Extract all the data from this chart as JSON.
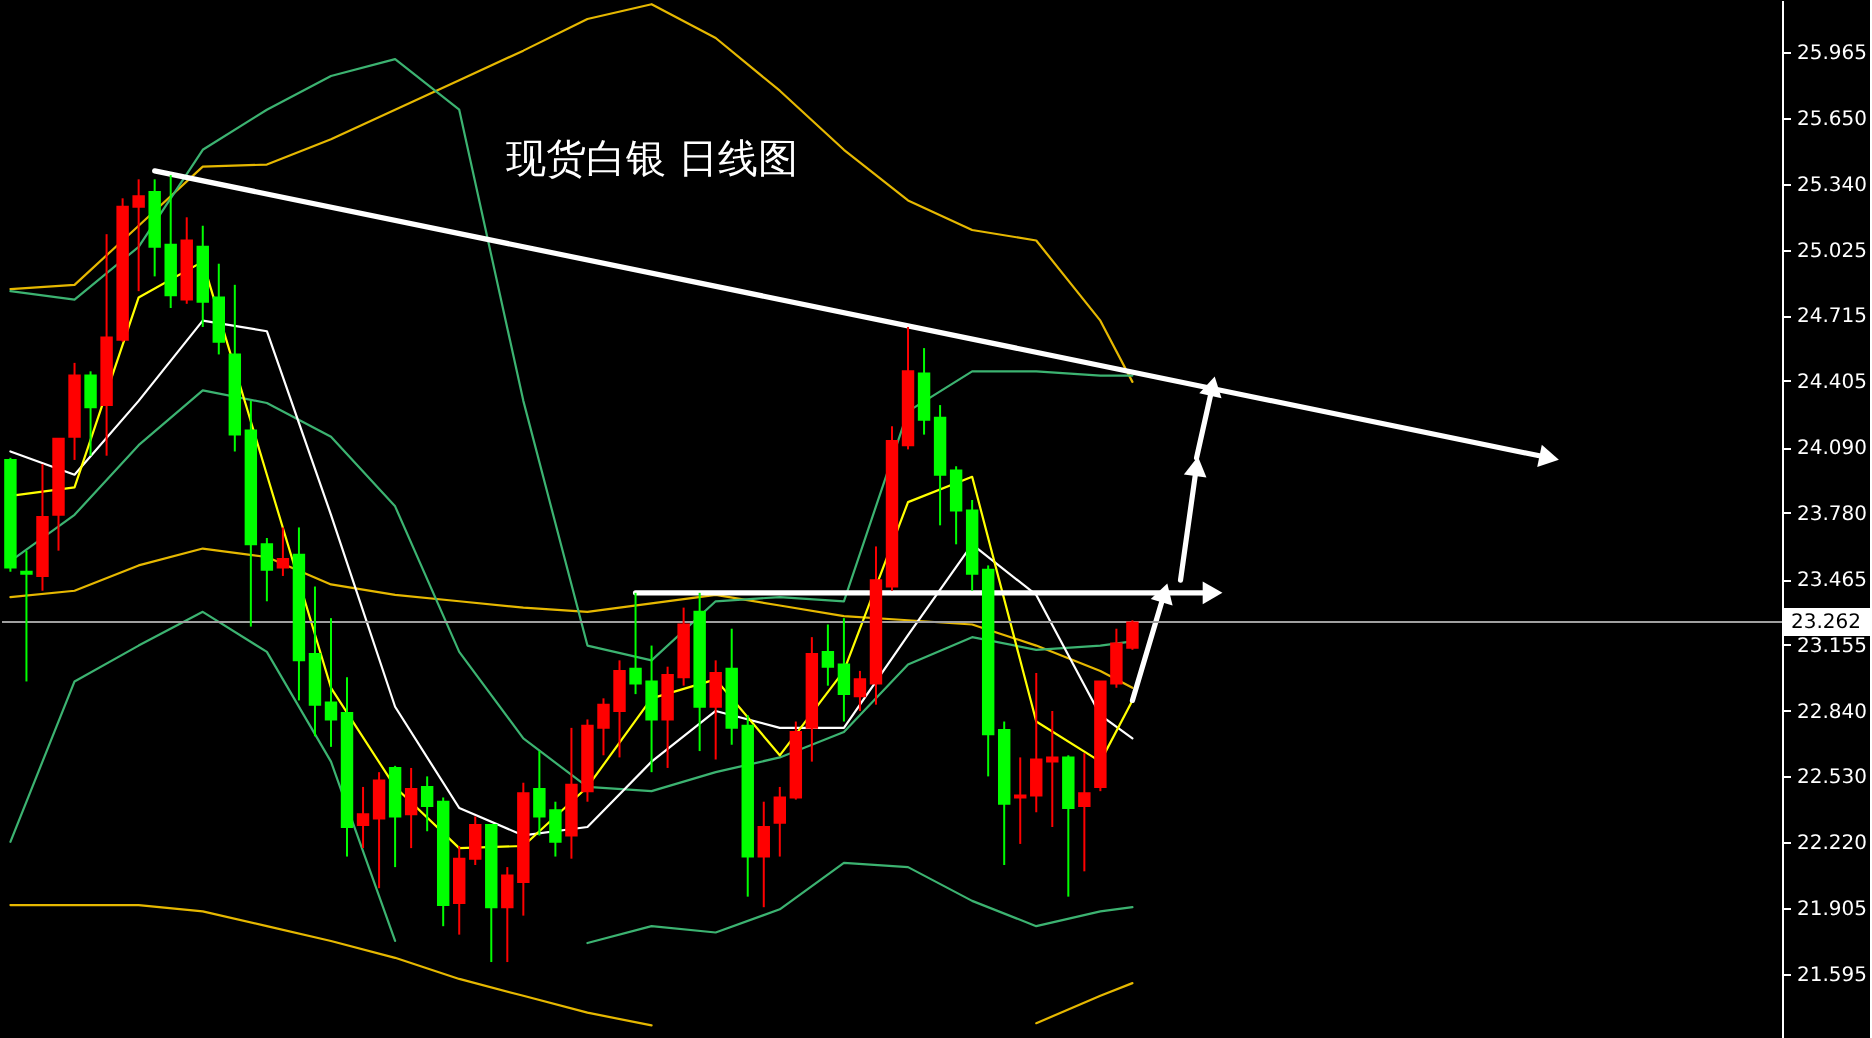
{
  "chart_data": {
    "type": "candlestick",
    "title": "现货白银  日线图",
    "categories": [
      null,
      null,
      null,
      null,
      null,
      null,
      null,
      null,
      null,
      null,
      null,
      null,
      null,
      null,
      null,
      null,
      null,
      null,
      null,
      null,
      null,
      null,
      null,
      null,
      null,
      null,
      null,
      null,
      null,
      null,
      null,
      null,
      null,
      null,
      null,
      null,
      null,
      null,
      null,
      null,
      null,
      null,
      null,
      null,
      null,
      null,
      null,
      null,
      null,
      null,
      null,
      null,
      null,
      null,
      null,
      null,
      null,
      null,
      null,
      null,
      null,
      null,
      null,
      null,
      null,
      null,
      null,
      null,
      null,
      null,
      null,
      null,
      null,
      null,
      null,
      null,
      null,
      null,
      null,
      null,
      null,
      null,
      null,
      null,
      null,
      null,
      null,
      null,
      null,
      null,
      null,
      null,
      null,
      null,
      null,
      null,
      null,
      null,
      null,
      null,
      null,
      null,
      null,
      null,
      null,
      null,
      null,
      null,
      null,
      null,
      null
    ],
    "ohlc": [
      [
        24.03,
        24.04,
        23.5,
        23.52
      ],
      [
        23.5,
        23.6,
        22.98,
        23.49
      ],
      [
        23.48,
        24.01,
        23.41,
        23.76
      ],
      [
        23.77,
        24.13,
        23.6,
        24.13
      ],
      [
        24.14,
        24.49,
        24.03,
        24.43
      ],
      [
        24.43,
        24.45,
        24.05,
        24.28
      ],
      [
        24.29,
        25.1,
        24.05,
        24.61
      ],
      [
        24.6,
        25.27,
        24.59,
        25.23
      ],
      [
        25.23,
        25.36,
        24.83,
        25.28
      ],
      [
        25.3,
        25.36,
        24.9,
        25.04
      ],
      [
        25.05,
        25.38,
        24.75,
        24.81
      ],
      [
        24.79,
        25.18,
        24.77,
        25.07
      ],
      [
        25.04,
        25.14,
        24.66,
        24.78
      ],
      [
        24.8,
        24.96,
        24.53,
        24.59
      ],
      [
        24.53,
        24.86,
        24.07,
        24.15
      ],
      [
        24.17,
        24.31,
        23.24,
        23.63
      ],
      [
        23.63,
        23.66,
        23.36,
        23.51
      ],
      [
        23.52,
        23.71,
        23.48,
        23.56
      ],
      [
        23.58,
        23.71,
        22.89,
        23.08
      ],
      [
        23.11,
        23.43,
        22.72,
        22.87
      ],
      [
        22.88,
        23.28,
        22.67,
        22.8
      ],
      [
        22.83,
        23.0,
        22.15,
        22.29
      ],
      [
        22.3,
        22.48,
        22.19,
        22.35
      ],
      [
        22.33,
        22.55,
        22.0,
        22.51
      ],
      [
        22.57,
        22.58,
        22.1,
        22.34
      ],
      [
        22.35,
        22.57,
        22.19,
        22.47
      ],
      [
        22.48,
        22.53,
        22.27,
        22.39
      ],
      [
        22.41,
        22.43,
        21.82,
        21.92
      ],
      [
        21.93,
        22.2,
        21.78,
        22.14
      ],
      [
        22.14,
        22.34,
        22.11,
        22.3
      ],
      [
        22.3,
        22.3,
        21.65,
        21.91
      ],
      [
        21.91,
        22.1,
        21.65,
        22.06
      ],
      [
        22.03,
        22.5,
        21.87,
        22.45
      ],
      [
        22.47,
        22.65,
        22.25,
        22.34
      ],
      [
        22.37,
        22.41,
        22.15,
        22.22
      ],
      [
        22.25,
        22.76,
        22.14,
        22.49
      ],
      [
        22.46,
        22.8,
        22.41,
        22.77
      ],
      [
        22.76,
        22.9,
        22.63,
        22.87
      ],
      [
        22.84,
        23.08,
        22.62,
        23.03
      ],
      [
        23.04,
        23.4,
        22.92,
        22.97
      ],
      [
        22.98,
        23.15,
        22.55,
        22.8
      ],
      [
        22.8,
        23.05,
        22.57,
        23.01
      ],
      [
        23.0,
        23.33,
        22.96,
        23.25
      ],
      [
        23.31,
        23.4,
        22.65,
        22.86
      ],
      [
        22.86,
        23.08,
        22.61,
        23.02
      ],
      [
        23.04,
        23.23,
        22.68,
        22.76
      ],
      [
        22.77,
        22.82,
        21.96,
        22.15
      ],
      [
        22.15,
        22.41,
        21.91,
        22.29
      ],
      [
        22.31,
        22.48,
        22.15,
        22.43
      ],
      [
        22.43,
        22.79,
        22.42,
        22.74
      ],
      [
        22.76,
        23.19,
        22.6,
        23.11
      ],
      [
        23.12,
        23.25,
        22.96,
        23.05
      ],
      [
        23.06,
        23.28,
        22.79,
        22.92
      ],
      [
        22.91,
        23.03,
        22.84,
        22.99
      ],
      [
        22.97,
        23.62,
        22.87,
        23.46
      ],
      [
        23.43,
        24.19,
        23.41,
        24.12
      ],
      [
        24.1,
        24.66,
        24.08,
        24.45
      ],
      [
        24.44,
        24.56,
        24.15,
        24.22
      ],
      [
        24.23,
        24.29,
        23.72,
        23.96
      ],
      [
        23.98,
        24.0,
        23.63,
        23.79
      ],
      [
        23.79,
        23.84,
        23.41,
        23.49
      ],
      [
        23.51,
        23.53,
        22.53,
        22.73
      ],
      [
        22.75,
        22.79,
        22.11,
        22.4
      ],
      [
        22.43,
        22.62,
        22.21,
        22.44
      ],
      [
        22.44,
        23.02,
        22.36,
        22.61
      ],
      [
        22.6,
        22.84,
        22.29,
        22.62
      ],
      [
        22.62,
        22.63,
        21.96,
        22.38
      ],
      [
        22.39,
        22.64,
        22.08,
        22.45
      ],
      [
        22.48,
        22.98,
        22.46,
        22.98
      ],
      [
        22.97,
        23.23,
        22.95,
        23.16
      ],
      [
        23.14,
        23.27,
        23.13,
        23.26
      ],
      null,
      null,
      null,
      null,
      null,
      null,
      null,
      null,
      null,
      null,
      null,
      null,
      null,
      null,
      null,
      null,
      null,
      null,
      null,
      null,
      null,
      null,
      null,
      null,
      null,
      null,
      null,
      null,
      null,
      null,
      null,
      null,
      null,
      null,
      null,
      null,
      null,
      null,
      null,
      null
    ],
    "colors": [
      "#00ff00",
      "#00ff00",
      "#ff0000",
      "#ff0000",
      "#ff0000",
      "#00ff00",
      "#ff0000",
      "#ff0000",
      "#ff0000",
      "#00ff00",
      "#00ff00",
      "#ff0000",
      "#00ff00",
      "#00ff00",
      "#00ff00",
      "#00ff00",
      "#00ff00",
      "#ff0000",
      "#00ff00",
      "#00ff00",
      "#00ff00",
      "#00ff00",
      "#ff0000",
      "#ff0000",
      "#00ff00",
      "#ff0000",
      "#00ff00",
      "#00ff00",
      "#ff0000",
      "#ff0000",
      "#00ff00",
      "#ff0000",
      "#ff0000",
      "#00ff00",
      "#00ff00",
      "#ff0000",
      "#ff0000",
      "#ff0000",
      "#ff0000",
      "#00ff00",
      "#00ff00",
      "#ff0000",
      "#ff0000",
      "#00ff00",
      "#ff0000",
      "#00ff00",
      "#00ff00",
      "#ff0000",
      "#ff0000",
      "#ff0000",
      "#ff0000",
      "#00ff00",
      "#00ff00",
      "#ff0000",
      "#ff0000",
      "#ff0000",
      "#ff0000",
      "#00ff00",
      "#00ff00",
      "#00ff00",
      "#00ff00",
      "#00ff00",
      "#00ff00",
      "#ff0000",
      "#ff0000",
      "#ff0000",
      "#00ff00",
      "#ff0000",
      "#ff0000",
      "#ff0000",
      "#ff0000",
      null,
      null,
      null,
      null,
      null,
      null,
      null,
      null,
      null,
      null,
      null,
      null,
      null,
      null,
      null,
      null,
      null,
      null,
      null,
      null,
      null,
      null,
      null,
      null,
      null,
      null,
      null,
      null,
      null,
      null,
      null,
      null,
      null,
      null,
      null,
      null,
      null,
      null,
      null,
      null
    ],
    "series": [
      {
        "type": "line",
        "color": "#e6b800",
        "values": [
          24.84,
          null,
          null,
          null,
          24.86,
          null,
          null,
          null,
          25.14,
          null,
          null,
          null,
          25.42,
          null,
          null,
          null,
          25.43,
          null,
          null,
          null,
          25.55,
          null,
          null,
          null,
          25.69,
          null,
          null,
          null,
          25.83,
          null,
          null,
          null,
          25.97,
          null,
          null,
          null,
          26.12,
          null,
          null,
          null,
          26.19,
          null,
          null,
          null,
          26.03,
          null,
          null,
          null,
          25.78,
          null,
          null,
          null,
          25.5,
          null,
          null,
          null,
          25.26,
          null,
          null,
          null,
          25.12,
          null,
          null,
          null,
          25.07,
          null,
          null,
          null,
          24.69,
          null,
          24.4,
          null,
          null,
          null,
          null,
          null,
          null,
          null,
          null,
          null,
          null,
          null,
          null,
          null,
          null,
          null,
          null,
          null,
          null,
          null,
          null,
          null,
          null,
          null,
          null,
          null,
          null,
          null,
          null,
          null,
          null,
          null,
          null,
          null,
          null,
          null,
          null,
          null,
          null,
          null,
          null
        ]
      },
      {
        "type": "line",
        "color": "#e6b800",
        "values": [
          23.38,
          null,
          null,
          null,
          23.41,
          null,
          null,
          null,
          23.53,
          null,
          null,
          null,
          23.61,
          null,
          null,
          null,
          23.57,
          null,
          null,
          null,
          23.44,
          null,
          null,
          null,
          23.39,
          null,
          null,
          null,
          23.36,
          null,
          null,
          null,
          23.33,
          null,
          null,
          null,
          23.31,
          null,
          null,
          null,
          23.35,
          null,
          null,
          null,
          23.39,
          null,
          null,
          null,
          23.34,
          null,
          null,
          null,
          23.29,
          null,
          null,
          null,
          23.27,
          null,
          null,
          null,
          23.25,
          null,
          null,
          null,
          23.15,
          null,
          null,
          null,
          23.03,
          null,
          22.95,
          null,
          null,
          null,
          null,
          null,
          null,
          null,
          null,
          null,
          null,
          null,
          null,
          null,
          null,
          null,
          null,
          null,
          null,
          null,
          null,
          null,
          null,
          null,
          null,
          null,
          null,
          null,
          null,
          null,
          null,
          null,
          null,
          null,
          null,
          null,
          null,
          null,
          null,
          null,
          null
        ]
      },
      {
        "type": "line",
        "color": "#e6b800",
        "values": [
          21.92,
          null,
          null,
          null,
          21.92,
          null,
          null,
          null,
          21.92,
          null,
          null,
          null,
          21.89,
          null,
          null,
          null,
          21.82,
          null,
          null,
          null,
          21.75,
          null,
          null,
          null,
          21.67,
          null,
          null,
          null,
          21.57,
          null,
          null,
          null,
          21.49,
          null,
          null,
          null,
          21.41,
          null,
          null,
          null,
          21.35,
          null,
          null,
          null,
          null,
          null,
          null,
          null,
          null,
          null,
          null,
          null,
          null,
          null,
          null,
          null,
          null,
          null,
          null,
          null,
          null,
          null,
          null,
          null,
          21.36,
          null,
          null,
          null,
          21.49,
          null,
          21.55,
          null,
          null,
          null,
          null,
          null,
          null,
          null,
          null,
          null,
          null,
          null,
          null,
          null,
          null,
          null,
          null,
          null,
          null,
          null,
          null,
          null,
          null,
          null,
          null,
          null,
          null,
          null,
          null,
          null,
          null,
          null,
          null,
          null,
          null,
          null,
          null,
          null,
          null,
          null,
          null
        ]
      },
      {
        "type": "line",
        "color": "#3cb371",
        "values": [
          24.83,
          null,
          null,
          null,
          24.79,
          null,
          null,
          null,
          25.04,
          null,
          null,
          null,
          25.5,
          null,
          null,
          null,
          25.69,
          null,
          null,
          null,
          25.85,
          null,
          null,
          null,
          25.93,
          null,
          null,
          null,
          25.69,
          null,
          null,
          null,
          24.31,
          null,
          null,
          null,
          23.15,
          null,
          null,
          null,
          23.08,
          null,
          null,
          null,
          23.36,
          null,
          null,
          null,
          23.38,
          null,
          null,
          null,
          23.36,
          null,
          null,
          null,
          24.26,
          null,
          null,
          null,
          24.45,
          null,
          null,
          null,
          24.45,
          null,
          null,
          null,
          24.43,
          null,
          24.43,
          null,
          null,
          null,
          null,
          null,
          null,
          null,
          null,
          null,
          null,
          null,
          null,
          null,
          null,
          null,
          null,
          null,
          null,
          null,
          null,
          null,
          null,
          null,
          null,
          null,
          null,
          null,
          null,
          null,
          null,
          null,
          null,
          null,
          null,
          null,
          null,
          null,
          null,
          null,
          null
        ]
      },
      {
        "type": "line",
        "color": "#3cb371",
        "values": [
          23.55,
          null,
          null,
          null,
          23.77,
          null,
          null,
          null,
          24.1,
          null,
          null,
          null,
          24.36,
          null,
          null,
          null,
          24.3,
          null,
          null,
          null,
          24.14,
          null,
          null,
          null,
          23.81,
          null,
          null,
          null,
          23.12,
          null,
          null,
          null,
          22.71,
          null,
          null,
          null,
          22.48,
          null,
          null,
          null,
          22.46,
          null,
          null,
          null,
          22.55,
          null,
          null,
          null,
          22.62,
          null,
          null,
          null,
          22.74,
          null,
          null,
          null,
          23.06,
          null,
          null,
          null,
          23.19,
          null,
          null,
          null,
          23.13,
          null,
          null,
          null,
          23.15,
          null,
          23.17,
          null,
          null,
          null,
          null,
          null,
          null,
          null,
          null,
          null,
          null,
          null,
          null,
          null,
          null,
          null,
          null,
          null,
          null,
          null,
          null,
          null,
          null,
          null,
          null,
          null,
          null,
          null,
          null,
          null,
          null,
          null,
          null,
          null,
          null,
          null,
          null,
          null,
          null,
          null,
          null
        ]
      },
      {
        "type": "line",
        "color": "#3cb371",
        "values": [
          22.22,
          null,
          null,
          null,
          22.98,
          null,
          null,
          null,
          23.15,
          null,
          null,
          null,
          23.31,
          null,
          null,
          null,
          23.12,
          null,
          null,
          null,
          22.6,
          null,
          null,
          null,
          21.75,
          null,
          null,
          null,
          null,
          null,
          null,
          null,
          null,
          null,
          null,
          null,
          21.74,
          null,
          null,
          null,
          21.82,
          null,
          null,
          null,
          21.79,
          null,
          null,
          null,
          21.9,
          null,
          null,
          null,
          22.12,
          null,
          null,
          null,
          22.1,
          null,
          null,
          null,
          21.94,
          null,
          null,
          null,
          21.82,
          null,
          null,
          null,
          21.89,
          null,
          21.91,
          null,
          null,
          null,
          null,
          null,
          null,
          null,
          null,
          null,
          null,
          null,
          null,
          null,
          null,
          null,
          null,
          null,
          null,
          null,
          null,
          null,
          null,
          null,
          null,
          null,
          null,
          null,
          null,
          null,
          null,
          null,
          null,
          null,
          null,
          null,
          null,
          null,
          null,
          null,
          null
        ]
      },
      {
        "type": "line",
        "color": "#ffffff",
        "values": [
          24.07,
          null,
          null,
          null,
          23.96,
          null,
          null,
          null,
          24.31,
          null,
          null,
          null,
          24.69,
          null,
          null,
          null,
          24.64,
          null,
          null,
          null,
          23.77,
          null,
          null,
          null,
          22.86,
          null,
          null,
          null,
          22.38,
          null,
          null,
          null,
          22.25,
          null,
          null,
          null,
          22.29,
          null,
          null,
          null,
          22.6,
          null,
          null,
          null,
          22.84,
          null,
          null,
          null,
          22.76,
          null,
          null,
          null,
          22.76,
          null,
          null,
          null,
          23.2,
          null,
          null,
          null,
          23.63,
          null,
          null,
          null,
          23.39,
          null,
          null,
          null,
          22.82,
          null,
          22.71,
          null,
          null,
          null,
          null,
          null,
          null,
          null,
          null,
          null,
          null,
          null,
          null,
          null,
          null,
          null,
          null,
          null,
          null,
          null,
          null,
          null,
          null,
          null,
          null,
          null,
          null,
          null,
          null,
          null,
          null,
          null,
          null,
          null,
          null,
          null,
          null,
          null,
          null,
          null,
          null
        ]
      },
      {
        "type": "line",
        "color": "#ffff00",
        "values": [
          23.86,
          null,
          null,
          null,
          23.9,
          null,
          null,
          null,
          24.8,
          null,
          null,
          null,
          24.97,
          null,
          null,
          null,
          23.96,
          null,
          null,
          null,
          22.95,
          null,
          null,
          null,
          22.48,
          null,
          null,
          null,
          22.19,
          null,
          null,
          null,
          22.2,
          null,
          null,
          null,
          22.48,
          null,
          null,
          null,
          22.9,
          null,
          null,
          null,
          22.99,
          null,
          null,
          null,
          22.63,
          null,
          null,
          null,
          23.03,
          null,
          null,
          null,
          23.83,
          null,
          null,
          null,
          23.95,
          null,
          null,
          null,
          22.79,
          null,
          null,
          null,
          22.6,
          null,
          22.89,
          null,
          null,
          null,
          null,
          null,
          null,
          null,
          null,
          null,
          null,
          null,
          null,
          null,
          null,
          null,
          null,
          null,
          null,
          null,
          null,
          null,
          null,
          null,
          null,
          null,
          null,
          null,
          null,
          null,
          null,
          null,
          null,
          null,
          null,
          null,
          null,
          null,
          null,
          null,
          null
        ]
      },
      {
        "type": "line",
        "color": "#ffffff",
        "marker": "triangle",
        "values": [
          null,
          null,
          null,
          null,
          null,
          null,
          null,
          null,
          null,
          25.4,
          null,
          null,
          null,
          null,
          null,
          null,
          null,
          null,
          null,
          null,
          null,
          null,
          null,
          null,
          null,
          null,
          null,
          null,
          null,
          null,
          null,
          null,
          null,
          null,
          null,
          null,
          null,
          null,
          null,
          null,
          null,
          null,
          null,
          null,
          null,
          null,
          null,
          null,
          null,
          null,
          null,
          null,
          null,
          null,
          null,
          null,
          null,
          null,
          null,
          null,
          null,
          null,
          null,
          null,
          null,
          null,
          null,
          null,
          null,
          null,
          null,
          null,
          null,
          null,
          null,
          null,
          null,
          null,
          null,
          null,
          null,
          null,
          null,
          null,
          null,
          null,
          null,
          null,
          null,
          null,
          null,
          null,
          null,
          null,
          null,
          null,
          24.04,
          null,
          null,
          null,
          null,
          null,
          null,
          null,
          null,
          null,
          null,
          null,
          null,
          null,
          null
        ]
      },
      {
        "type": "line",
        "color": "#ffffff",
        "marker": "triangle",
        "values": [
          null,
          null,
          null,
          null,
          null,
          null,
          null,
          null,
          null,
          null,
          null,
          null,
          null,
          null,
          null,
          null,
          null,
          null,
          null,
          null,
          null,
          null,
          null,
          null,
          null,
          null,
          null,
          null,
          null,
          null,
          null,
          null,
          null,
          null,
          null,
          null,
          null,
          null,
          null,
          23.4,
          null,
          null,
          null,
          null,
          null,
          null,
          null,
          null,
          null,
          null,
          null,
          null,
          null,
          null,
          null,
          null,
          null,
          null,
          null,
          null,
          null,
          null,
          null,
          null,
          null,
          null,
          null,
          null,
          null,
          null,
          null,
          null,
          null,
          null,
          null,
          23.4,
          null,
          null,
          null,
          null,
          null,
          null,
          null,
          null,
          null,
          null,
          null,
          null,
          null,
          null,
          null,
          null,
          null,
          null,
          null,
          null,
          null,
          null,
          null,
          null,
          null,
          null,
          null,
          null,
          null,
          null,
          null,
          null,
          null,
          null,
          null
        ]
      },
      {
        "type": "line",
        "color": "#ffffff",
        "marker": "triangle",
        "values": [
          null,
          null,
          null,
          null,
          null,
          null,
          null,
          null,
          null,
          null,
          null,
          null,
          null,
          null,
          null,
          null,
          null,
          null,
          null,
          null,
          null,
          null,
          null,
          null,
          null,
          null,
          null,
          null,
          null,
          null,
          null,
          null,
          null,
          null,
          null,
          null,
          null,
          null,
          null,
          null,
          null,
          null,
          null,
          null,
          null,
          null,
          null,
          null,
          null,
          null,
          null,
          null,
          null,
          null,
          null,
          null,
          null,
          null,
          null,
          null,
          null,
          null,
          null,
          null,
          null,
          null,
          null,
          null,
          null,
          null,
          22.89,
          null,
          23.4,
          null,
          null,
          null,
          null,
          null,
          null,
          null,
          null,
          null,
          null,
          null,
          null,
          null,
          null,
          null,
          null,
          null,
          null,
          null,
          null,
          null,
          null,
          null,
          null,
          null,
          null,
          null,
          null,
          null,
          null,
          null,
          null,
          null,
          null,
          null,
          null,
          null,
          null
        ]
      },
      {
        "type": "line",
        "color": "#ffffff",
        "marker": "triangle",
        "values": [
          null,
          null,
          null,
          null,
          null,
          null,
          null,
          null,
          null,
          null,
          null,
          null,
          null,
          null,
          null,
          null,
          null,
          null,
          null,
          null,
          null,
          null,
          null,
          null,
          null,
          null,
          null,
          null,
          null,
          null,
          null,
          null,
          null,
          null,
          null,
          null,
          null,
          null,
          null,
          null,
          null,
          null,
          null,
          null,
          null,
          null,
          null,
          null,
          null,
          null,
          null,
          null,
          null,
          null,
          null,
          null,
          null,
          null,
          null,
          null,
          null,
          null,
          null,
          null,
          null,
          null,
          null,
          null,
          null,
          null,
          null,
          null,
          null,
          23.46,
          24.0,
          null,
          null,
          null,
          null,
          null,
          null,
          null,
          null,
          null,
          null,
          null,
          null,
          null,
          null,
          null,
          null,
          null,
          null,
          null,
          null,
          null,
          null,
          null,
          null,
          null,
          null,
          null,
          null,
          null,
          null,
          null,
          null,
          null,
          null,
          null,
          null
        ]
      },
      {
        "type": "line",
        "color": "#ffffff",
        "marker": "triangle",
        "values": [
          null,
          null,
          null,
          null,
          null,
          null,
          null,
          null,
          null,
          null,
          null,
          null,
          null,
          null,
          null,
          null,
          null,
          null,
          null,
          null,
          null,
          null,
          null,
          null,
          null,
          null,
          null,
          null,
          null,
          null,
          null,
          null,
          null,
          null,
          null,
          null,
          null,
          null,
          null,
          null,
          null,
          null,
          null,
          null,
          null,
          null,
          null,
          null,
          null,
          null,
          null,
          null,
          null,
          null,
          null,
          null,
          null,
          null,
          null,
          null,
          null,
          null,
          null,
          null,
          null,
          null,
          null,
          null,
          null,
          null,
          null,
          null,
          null,
          null,
          24.04,
          24.38,
          null,
          null,
          null,
          null,
          null,
          null,
          null,
          null,
          null,
          null,
          null,
          null,
          null,
          null,
          null,
          null,
          null,
          null,
          null,
          null,
          null,
          null,
          null,
          null,
          null,
          null,
          null,
          null,
          null,
          null,
          null,
          null,
          null,
          null,
          null
        ]
      }
    ],
    "ref_lines": [
      {
        "axis": "y",
        "value": 23.262,
        "label": "23.262",
        "color": "#a0a0a0"
      }
    ],
    "ylim": [
      21.29,
      26.21
    ],
    "yticks": [
      25.965,
      {
        "value": 25.65,
        "label": "25.650"
      },
      {
        "value": 25.34,
        "label": "25.340"
      },
      25.025,
      24.715,
      24.405,
      {
        "value": 24.09,
        "label": "24.090"
      },
      {
        "value": 23.78,
        "label": "23.780"
      },
      23.465,
      23.155,
      {
        "value": 22.84,
        "label": "22.840"
      },
      {
        "value": 22.53,
        "label": "22.530"
      },
      {
        "value": 22.22,
        "label": "22.220"
      },
      21.905,
      21.595
    ],
    "tick_labels": "y"
  }
}
